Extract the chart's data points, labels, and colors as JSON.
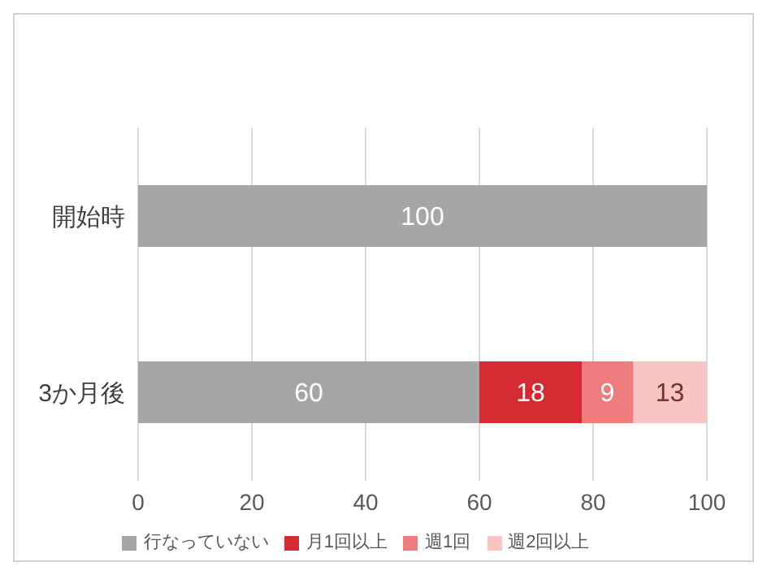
{
  "chart_data": {
    "type": "bar",
    "orientation": "horizontal",
    "stacked": true,
    "categories": [
      "開始時",
      "3か月後"
    ],
    "series": [
      {
        "name": "行なっていない",
        "color": "#a6a6a6",
        "values": [
          100,
          60
        ]
      },
      {
        "name": "月1回以上",
        "color": "#d42a32",
        "values": [
          null,
          18
        ]
      },
      {
        "name": "週1回",
        "color": "#ef7c7c",
        "values": [
          null,
          9
        ]
      },
      {
        "name": "週2回以上",
        "color": "#f8c4c4",
        "values": [
          null,
          13
        ]
      }
    ],
    "xlim": [
      0,
      100
    ],
    "xticks": [
      0,
      20,
      40,
      60,
      80,
      100
    ],
    "grid": "x",
    "legend": "bottom",
    "data_labels": true
  }
}
